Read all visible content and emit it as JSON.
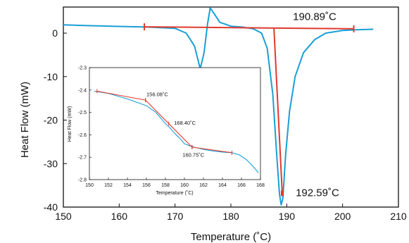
{
  "chart_data": [
    {
      "type": "line",
      "title": "",
      "xlabel": "Temperature (˚C)",
      "ylabel": "Heat Flow (mW)",
      "xlim": [
        150,
        210
      ],
      "ylim": [
        -40,
        6
      ],
      "xticks": [
        "150",
        "160",
        "170",
        "180",
        "190",
        "200",
        "210"
      ],
      "yticks": [
        "0",
        "-10",
        "-20",
        "-30",
        "-40"
      ],
      "grid": false,
      "colors": {
        "curve": "#1a9fd6",
        "tangent": "#e03a2f"
      },
      "series": [
        {
          "x": [
            150,
            155,
            160,
            165,
            170,
            172,
            173.5,
            174.5,
            175.2,
            175.8,
            176.3,
            177,
            178,
            180,
            182,
            184,
            185.5,
            186.5,
            187.5,
            188.2,
            188.7,
            189.0,
            189.3,
            189.8,
            190.5,
            191.5,
            193,
            195,
            197,
            200,
            203,
            205.5
          ],
          "y": [
            1.9,
            1.7,
            1.55,
            1.4,
            1.1,
            0.0,
            -3.0,
            -8.2,
            -4.5,
            2.0,
            5.8,
            4.5,
            2.5,
            1.6,
            1.4,
            1.0,
            0.0,
            -3.5,
            -14.0,
            -28.0,
            -37.0,
            -39.5,
            -38.0,
            -28.0,
            -18.0,
            -10.0,
            -4.5,
            -1.5,
            0.0,
            0.6,
            0.8,
            0.9
          ]
        }
      ],
      "tangent_lines": [
        {
          "x": [
            164.5,
            202.0
          ],
          "y": [
            1.45,
            1.0
          ]
        },
        {
          "x": [
            187.7,
            189.2
          ],
          "y": [
            1.3,
            -37.0
          ]
        }
      ],
      "annotations": [
        {
          "text": "190.89˚C",
          "x": 195.0,
          "y": 3.0
        },
        {
          "text": "192.59˚C",
          "x": 195.5,
          "y": -37.5
        }
      ]
    },
    {
      "type": "line",
      "title": "",
      "xlabel": "Temperature (˚C)",
      "ylabel": "Heat Flow (mW)",
      "xlim": [
        150,
        168
      ],
      "ylim": [
        -2.8,
        -2.3
      ],
      "xticks": [
        "150",
        "152",
        "154",
        "156",
        "158",
        "160",
        "162",
        "164",
        "166",
        "168"
      ],
      "yticks": [
        "-2.3",
        "-2.4",
        "-2.5",
        "-2.6",
        "-2.7",
        "-2.8"
      ],
      "grid": false,
      "series": [
        {
          "x": [
            150.5,
            152,
            154,
            156,
            157,
            158,
            158.5,
            159,
            159.5,
            160,
            160.5,
            161,
            162,
            163,
            164,
            165,
            165.8,
            166.5,
            167.2,
            167.8
          ],
          "y": [
            -2.405,
            -2.415,
            -2.44,
            -2.47,
            -2.5,
            -2.55,
            -2.57,
            -2.595,
            -2.615,
            -2.64,
            -2.648,
            -2.655,
            -2.665,
            -2.672,
            -2.677,
            -2.68,
            -2.69,
            -2.71,
            -2.74,
            -2.77
          ]
        }
      ],
      "tangent_lines": [
        {
          "x": [
            150.8,
            155.9
          ],
          "y": [
            -2.405,
            -2.445
          ]
        },
        {
          "x": [
            155.9,
            160.8
          ],
          "y": [
            -2.445,
            -2.655
          ]
        },
        {
          "x": [
            160.8,
            165.0
          ],
          "y": [
            -2.655,
            -2.68
          ]
        }
      ],
      "annotations": [
        {
          "text": "156.08˚C",
          "x": 156.0,
          "y": -2.428
        },
        {
          "text": "168.40˚C",
          "x": 158.9,
          "y": -2.555
        },
        {
          "text": "160.75˚C",
          "x": 159.8,
          "y": -2.698
        }
      ]
    }
  ]
}
